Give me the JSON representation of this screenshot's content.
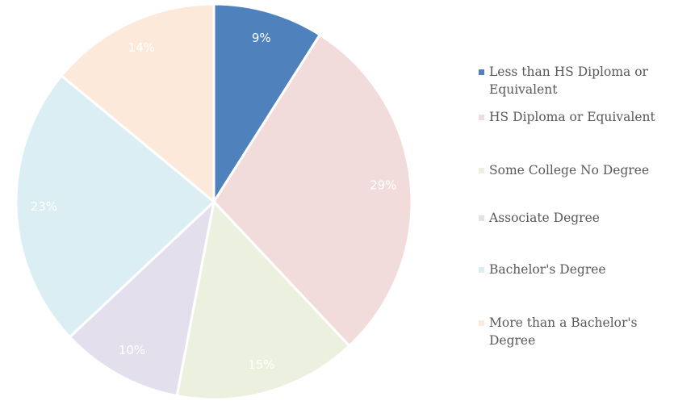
{
  "chart_data": {
    "type": "pie",
    "categories": [
      "Less than HS Diploma or Equivalent",
      "HS Diploma or Equivalent",
      "Some College No Degree",
      "Associate Degree",
      "Bachelor's Degree",
      "More than a Bachelor's Degree"
    ],
    "values": [
      9,
      29,
      15,
      10,
      23,
      14
    ],
    "value_labels": [
      "9%",
      "29%",
      "15%",
      "10%",
      "23%",
      "14%"
    ],
    "colors": [
      "#4f81bd",
      "#f2dcdb",
      "#ebf1de",
      "#e4dfec",
      "#daeef3",
      "#fde9d9"
    ],
    "legend": "right"
  }
}
